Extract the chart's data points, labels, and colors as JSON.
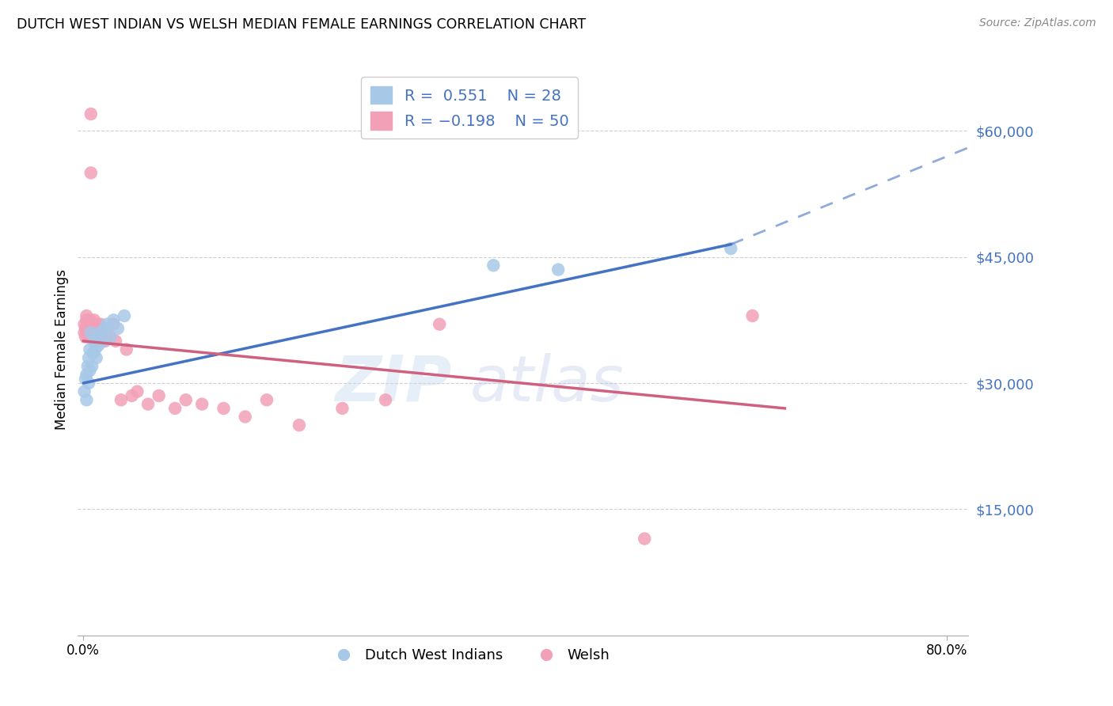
{
  "title": "DUTCH WEST INDIAN VS WELSH MEDIAN FEMALE EARNINGS CORRELATION CHART",
  "source": "Source: ZipAtlas.com",
  "ylabel": "Median Female Earnings",
  "bottom_legend_blue": "Dutch West Indians",
  "bottom_legend_pink": "Welsh",
  "blue_color": "#a8c8e8",
  "pink_color": "#f2a0b8",
  "trend_blue": "#4472c4",
  "trend_pink": "#d06080",
  "watermark_zip": "ZIP",
  "watermark_atlas": "atlas",
  "legend_R_blue": "R = ",
  "legend_val_blue": " 0.551",
  "legend_N_blue": "  N = ",
  "legend_Nval_blue": "28",
  "legend_R_pink": "R = ",
  "legend_val_pink": "-0.198",
  "legend_N_pink": "  N = ",
  "legend_Nval_pink": "50",
  "dutch_x": [
    0.001,
    0.002,
    0.003,
    0.003,
    0.004,
    0.005,
    0.005,
    0.006,
    0.006,
    0.007,
    0.008,
    0.009,
    0.01,
    0.011,
    0.012,
    0.013,
    0.014,
    0.016,
    0.018,
    0.02,
    0.022,
    0.025,
    0.028,
    0.032,
    0.038,
    0.38,
    0.44,
    0.6
  ],
  "dutch_y": [
    29000,
    30500,
    28000,
    31000,
    32000,
    30000,
    33000,
    31500,
    34000,
    36000,
    32000,
    33500,
    35000,
    34000,
    33000,
    35500,
    34500,
    36000,
    35000,
    36500,
    37000,
    35500,
    37500,
    36500,
    38000,
    44000,
    43500,
    46000
  ],
  "welsh_x": [
    0.001,
    0.001,
    0.002,
    0.002,
    0.003,
    0.003,
    0.004,
    0.004,
    0.005,
    0.005,
    0.006,
    0.006,
    0.007,
    0.007,
    0.008,
    0.009,
    0.01,
    0.01,
    0.011,
    0.012,
    0.013,
    0.013,
    0.014,
    0.015,
    0.016,
    0.017,
    0.018,
    0.02,
    0.022,
    0.025,
    0.028,
    0.03,
    0.035,
    0.04,
    0.045,
    0.05,
    0.06,
    0.07,
    0.085,
    0.095,
    0.11,
    0.13,
    0.15,
    0.17,
    0.2,
    0.24,
    0.28,
    0.33,
    0.52,
    0.62
  ],
  "welsh_y": [
    36000,
    37000,
    35500,
    36500,
    37500,
    38000,
    36000,
    37000,
    35500,
    36500,
    36000,
    37500,
    55000,
    62000,
    36500,
    37000,
    36000,
    37500,
    35500,
    36500,
    36000,
    37000,
    35000,
    36000,
    37000,
    36000,
    36500,
    35000,
    36000,
    35500,
    37000,
    35000,
    28000,
    34000,
    28500,
    29000,
    27500,
    28500,
    27000,
    28000,
    27500,
    27000,
    26000,
    28000,
    25000,
    27000,
    28000,
    37000,
    11500,
    38000
  ],
  "xlim": [
    -0.005,
    0.82
  ],
  "ylim": [
    0,
    68000
  ],
  "y_ticks": [
    0,
    15000,
    30000,
    45000,
    60000
  ],
  "y_tick_labels": [
    "",
    "$15,000",
    "$30,000",
    "$45,000",
    "$60,000"
  ],
  "trend_blue_x0": 0.0,
  "trend_blue_y0": 30000,
  "trend_blue_x1": 0.6,
  "trend_blue_y1": 46500,
  "trend_blue_dash_x0": 0.6,
  "trend_blue_dash_y0": 46500,
  "trend_blue_dash_x1": 0.82,
  "trend_blue_dash_y1": 58000,
  "trend_pink_x0": 0.0,
  "trend_pink_y0": 35000,
  "trend_pink_x1": 0.65,
  "trend_pink_y1": 27000
}
